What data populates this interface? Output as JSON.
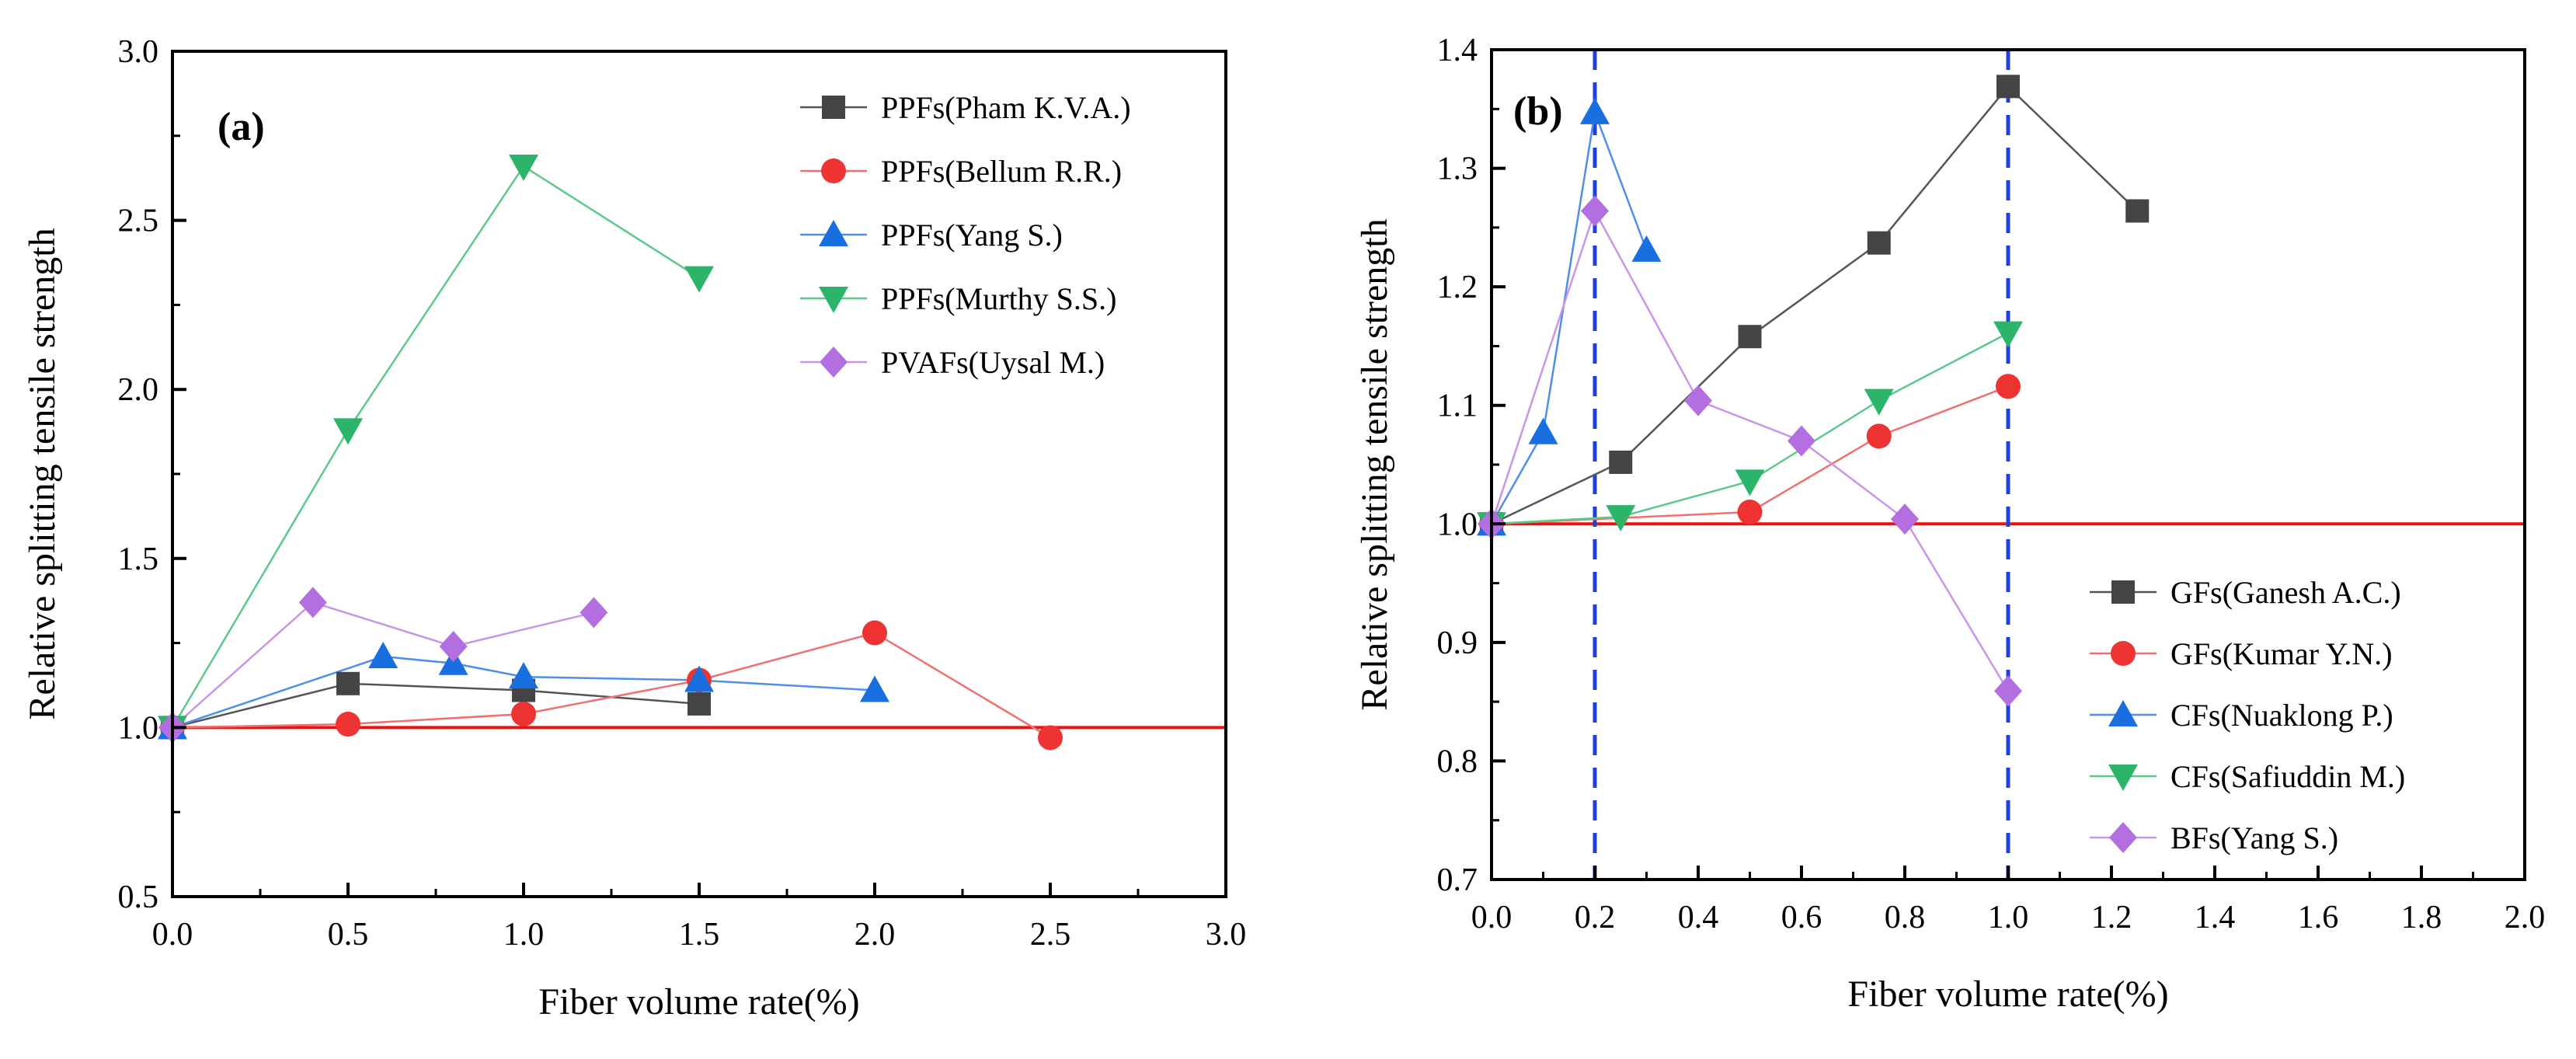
{
  "chart_data": [
    {
      "type": "line",
      "panel_label": "(a)",
      "xlabel": "Fiber volume rate(%)",
      "ylabel": "Relative splitting tensile strength",
      "xlim": [
        0,
        3.0
      ],
      "ylim": [
        0.5,
        3.0
      ],
      "x_ticks": [
        "0.0",
        "0.5",
        "1.0",
        "1.5",
        "2.0",
        "2.5",
        "3.0"
      ],
      "y_ticks": [
        "0.5",
        "1.0",
        "1.5",
        "2.0",
        "2.5",
        "3.0"
      ],
      "reference_line": {
        "y": 1.0,
        "color": "#ee1111"
      },
      "legend_position": "top-right",
      "series": [
        {
          "name": "PPFs(Pham K.V.A.)",
          "marker": "square",
          "color": "#444444",
          "line_color": "#555555",
          "x": [
            0,
            0.5,
            1.0,
            1.5
          ],
          "y": [
            1.0,
            1.13,
            1.11,
            1.07
          ]
        },
        {
          "name": "PPFs(Bellum R.R.)",
          "marker": "circle",
          "color": "#ee3333",
          "line_color": "#f07070",
          "x": [
            0,
            0.5,
            1.0,
            1.5,
            2.0,
            2.5
          ],
          "y": [
            1.0,
            1.01,
            1.04,
            1.14,
            1.28,
            0.97
          ]
        },
        {
          "name": "PPFs(Yang S.)",
          "marker": "triangle-up",
          "color": "#1a6fe0",
          "line_color": "#4f8fe8",
          "x": [
            0,
            0.6,
            0.8,
            1.0,
            1.5,
            2.0
          ],
          "y": [
            1.0,
            1.21,
            1.19,
            1.15,
            1.14,
            1.11
          ]
        },
        {
          "name": "PPFs(Murthy S.S.)",
          "marker": "triangle-down",
          "color": "#2bb46a",
          "line_color": "#5cc98c",
          "x": [
            0,
            0.5,
            1.0,
            1.5
          ],
          "y": [
            1.0,
            1.88,
            2.66,
            2.33
          ]
        },
        {
          "name": "PVAFs(Uysal M.)",
          "marker": "diamond",
          "color": "#b36ee0",
          "line_color": "#c995ea",
          "x": [
            0,
            0.4,
            0.8,
            1.2
          ],
          "y": [
            1.0,
            1.37,
            1.24,
            1.34
          ]
        }
      ]
    },
    {
      "type": "line",
      "panel_label": "(b)",
      "xlabel": "Fiber volume rate(%)",
      "ylabel": "Relative splitting tensile strength",
      "xlim": [
        0,
        2.0
      ],
      "ylim": [
        0.7,
        1.4
      ],
      "x_ticks": [
        "0.0",
        "0.2",
        "0.4",
        "0.6",
        "0.8",
        "1.0",
        "1.2",
        "1.4",
        "1.6",
        "1.8",
        "2.0"
      ],
      "y_ticks": [
        "0.7",
        "0.8",
        "0.9",
        "1.0",
        "1.1",
        "1.2",
        "1.3",
        "1.4"
      ],
      "reference_line": {
        "y": 1.0,
        "color": "#ee1111"
      },
      "vertical_lines": [
        {
          "x": 0.2,
          "color": "#1f3fe0"
        },
        {
          "x": 1.0,
          "color": "#1f3fe0"
        }
      ],
      "legend_position": "bottom-right",
      "series": [
        {
          "name": "GFs(Ganesh A.C.)",
          "marker": "square",
          "color": "#444444",
          "line_color": "#555555",
          "x": [
            0,
            0.25,
            0.5,
            0.75,
            1.0,
            1.25
          ],
          "y": [
            1.0,
            1.052,
            1.158,
            1.237,
            1.369,
            1.264
          ]
        },
        {
          "name": "GFs(Kumar Y.N.)",
          "marker": "circle",
          "color": "#ee3333",
          "line_color": "#f07070",
          "x": [
            0,
            0.5,
            0.75,
            1.0
          ],
          "y": [
            1.0,
            1.01,
            1.074,
            1.116
          ]
        },
        {
          "name": "CFs(Nuaklong P.)",
          "marker": "triangle-up",
          "color": "#1a6fe0",
          "line_color": "#4f8fe8",
          "x": [
            0,
            0.1,
            0.2,
            0.3
          ],
          "y": [
            1.0,
            1.077,
            1.347,
            1.231
          ]
        },
        {
          "name": "CFs(Safiuddin M.)",
          "marker": "triangle-down",
          "color": "#2bb46a",
          "line_color": "#5cc98c",
          "x": [
            0,
            0.25,
            0.5,
            0.75,
            1.0
          ],
          "y": [
            1.0,
            1.006,
            1.036,
            1.104,
            1.161
          ]
        },
        {
          "name": "BFs(Yang S.)",
          "marker": "diamond",
          "color": "#b36ee0",
          "line_color": "#c995ea",
          "x": [
            0,
            0.2,
            0.4,
            0.6,
            0.8,
            1.0
          ],
          "y": [
            1.0,
            1.264,
            1.104,
            1.07,
            1.004,
            0.859
          ]
        }
      ]
    }
  ]
}
